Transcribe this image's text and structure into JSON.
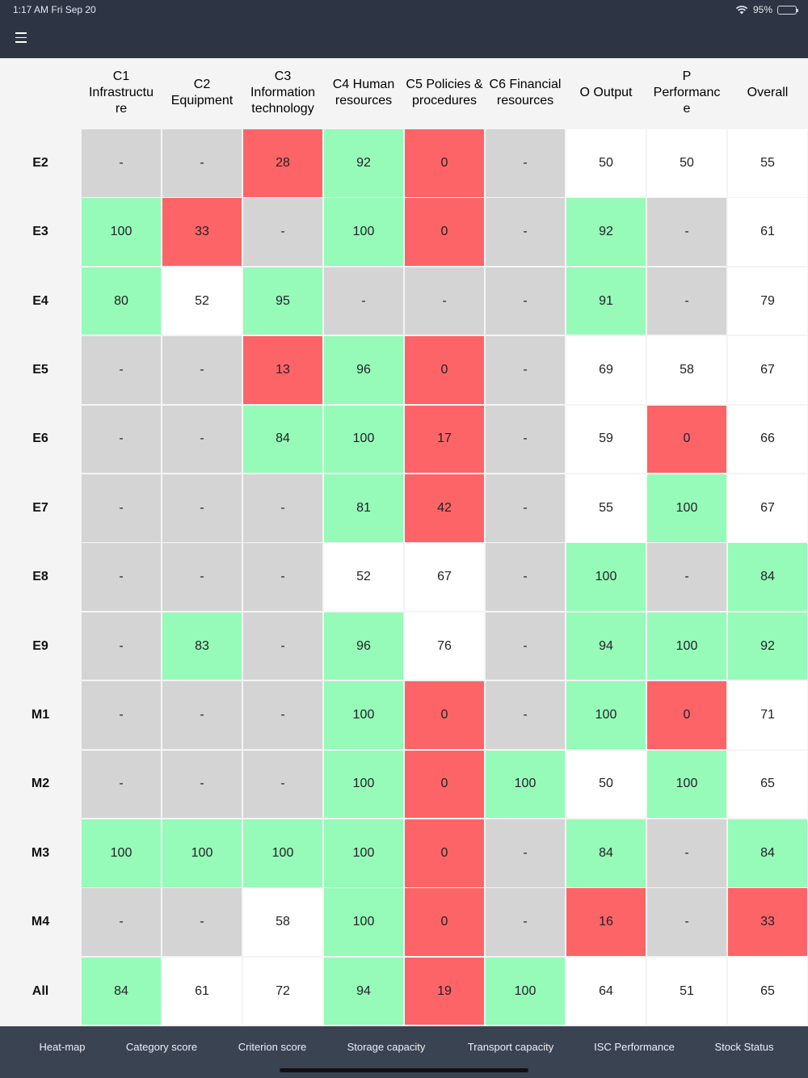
{
  "status_bar": {
    "time": "1:17 AM   Fri Sep 20",
    "battery": "95%",
    "battery_level": 0.95
  },
  "columns": [
    "C1 Infrastructu re",
    "C2 Equipment",
    "C3 Information technology",
    "C4 Human resources",
    "C5 Policies & procedures",
    "C6 Financial resources",
    "O Output",
    "P Performanc e",
    "Overall"
  ],
  "colors": {
    "green": "#96fab9",
    "red": "#fd6468",
    "gray": "#d4d4d4",
    "white": "#ffffff"
  },
  "rows": [
    {
      "label": "E2",
      "cells": [
        [
          "-",
          "n"
        ],
        [
          "-",
          "n"
        ],
        [
          "28",
          "r"
        ],
        [
          "92",
          "g"
        ],
        [
          "0",
          "r"
        ],
        [
          "-",
          "n"
        ],
        [
          "50",
          "w"
        ],
        [
          "50",
          "w"
        ],
        [
          "55",
          "w"
        ]
      ]
    },
    {
      "label": "E3",
      "cells": [
        [
          "100",
          "g"
        ],
        [
          "33",
          "r"
        ],
        [
          "-",
          "n"
        ],
        [
          "100",
          "g"
        ],
        [
          "0",
          "r"
        ],
        [
          "-",
          "n"
        ],
        [
          "92",
          "g"
        ],
        [
          "-",
          "n"
        ],
        [
          "61",
          "w"
        ]
      ]
    },
    {
      "label": "E4",
      "cells": [
        [
          "80",
          "g"
        ],
        [
          "52",
          "w"
        ],
        [
          "95",
          "g"
        ],
        [
          "-",
          "n"
        ],
        [
          "-",
          "n"
        ],
        [
          "-",
          "n"
        ],
        [
          "91",
          "g"
        ],
        [
          "-",
          "n"
        ],
        [
          "79",
          "w"
        ]
      ]
    },
    {
      "label": "E5",
      "cells": [
        [
          "-",
          "n"
        ],
        [
          "-",
          "n"
        ],
        [
          "13",
          "r"
        ],
        [
          "96",
          "g"
        ],
        [
          "0",
          "r"
        ],
        [
          "-",
          "n"
        ],
        [
          "69",
          "w"
        ],
        [
          "58",
          "w"
        ],
        [
          "67",
          "w"
        ]
      ]
    },
    {
      "label": "E6",
      "cells": [
        [
          "-",
          "n"
        ],
        [
          "-",
          "n"
        ],
        [
          "84",
          "g"
        ],
        [
          "100",
          "g"
        ],
        [
          "17",
          "r"
        ],
        [
          "-",
          "n"
        ],
        [
          "59",
          "w"
        ],
        [
          "0",
          "r"
        ],
        [
          "66",
          "w"
        ]
      ]
    },
    {
      "label": "E7",
      "cells": [
        [
          "-",
          "n"
        ],
        [
          "-",
          "n"
        ],
        [
          "-",
          "n"
        ],
        [
          "81",
          "g"
        ],
        [
          "42",
          "r"
        ],
        [
          "-",
          "n"
        ],
        [
          "55",
          "w"
        ],
        [
          "100",
          "g"
        ],
        [
          "67",
          "w"
        ]
      ]
    },
    {
      "label": "E8",
      "cells": [
        [
          "-",
          "n"
        ],
        [
          "-",
          "n"
        ],
        [
          "-",
          "n"
        ],
        [
          "52",
          "w"
        ],
        [
          "67",
          "w"
        ],
        [
          "-",
          "n"
        ],
        [
          "100",
          "g"
        ],
        [
          "-",
          "n"
        ],
        [
          "84",
          "g"
        ]
      ]
    },
    {
      "label": "E9",
      "cells": [
        [
          "-",
          "n"
        ],
        [
          "83",
          "g"
        ],
        [
          "-",
          "n"
        ],
        [
          "96",
          "g"
        ],
        [
          "76",
          "w"
        ],
        [
          "-",
          "n"
        ],
        [
          "94",
          "g"
        ],
        [
          "100",
          "g"
        ],
        [
          "92",
          "g"
        ]
      ]
    },
    {
      "label": "M1",
      "cells": [
        [
          "-",
          "n"
        ],
        [
          "-",
          "n"
        ],
        [
          "-",
          "n"
        ],
        [
          "100",
          "g"
        ],
        [
          "0",
          "r"
        ],
        [
          "-",
          "n"
        ],
        [
          "100",
          "g"
        ],
        [
          "0",
          "r"
        ],
        [
          "71",
          "w"
        ]
      ]
    },
    {
      "label": "M2",
      "cells": [
        [
          "-",
          "n"
        ],
        [
          "-",
          "n"
        ],
        [
          "-",
          "n"
        ],
        [
          "100",
          "g"
        ],
        [
          "0",
          "r"
        ],
        [
          "100",
          "g"
        ],
        [
          "50",
          "w"
        ],
        [
          "100",
          "g"
        ],
        [
          "65",
          "w"
        ]
      ]
    },
    {
      "label": "M3",
      "cells": [
        [
          "100",
          "g"
        ],
        [
          "100",
          "g"
        ],
        [
          "100",
          "g"
        ],
        [
          "100",
          "g"
        ],
        [
          "0",
          "r"
        ],
        [
          "-",
          "n"
        ],
        [
          "84",
          "g"
        ],
        [
          "-",
          "n"
        ],
        [
          "84",
          "g"
        ]
      ]
    },
    {
      "label": "M4",
      "cells": [
        [
          "-",
          "n"
        ],
        [
          "-",
          "n"
        ],
        [
          "58",
          "w"
        ],
        [
          "100",
          "g"
        ],
        [
          "0",
          "r"
        ],
        [
          "-",
          "n"
        ],
        [
          "16",
          "r"
        ],
        [
          "-",
          "n"
        ],
        [
          "33",
          "r"
        ]
      ]
    },
    {
      "label": "All",
      "cells": [
        [
          "84",
          "g"
        ],
        [
          "61",
          "w"
        ],
        [
          "72",
          "w"
        ],
        [
          "94",
          "g"
        ],
        [
          "19",
          "r"
        ],
        [
          "100",
          "g"
        ],
        [
          "64",
          "w"
        ],
        [
          "51",
          "w"
        ],
        [
          "65",
          "w"
        ]
      ]
    }
  ],
  "tabs": [
    "Heat-map",
    "Category score",
    "Criterion score",
    "Storage capacity",
    "Transport capacity",
    "ISC Performance",
    "Stock Status"
  ]
}
